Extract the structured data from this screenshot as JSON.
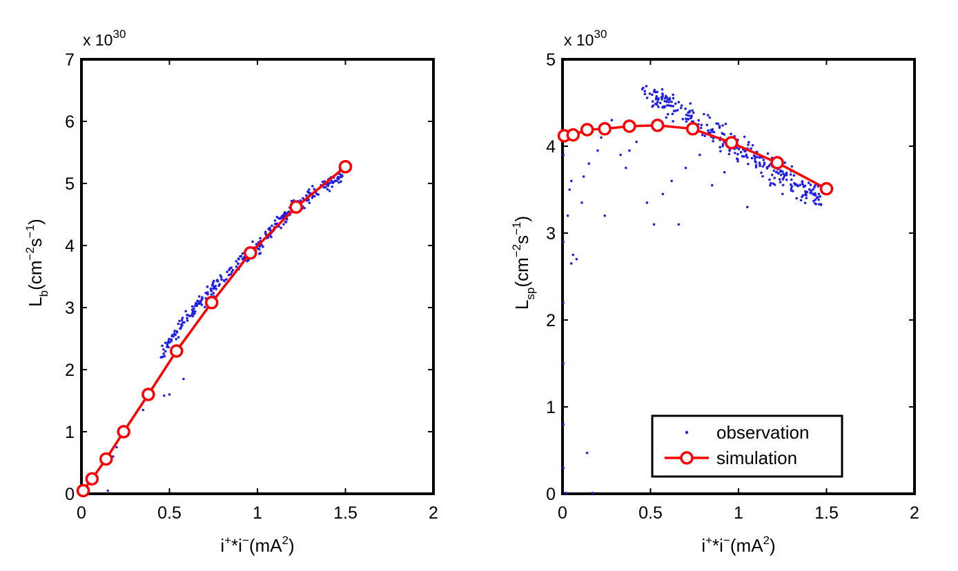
{
  "chart_data": [
    {
      "type": "scatter",
      "xlabel": {
        "base": "i",
        "sup1": "+",
        "mid": "*i",
        "sup2": "−",
        "unit": "(mA",
        "unit_sup": "2",
        "close": ")"
      },
      "ylabel": {
        "base": "L",
        "sub": "b",
        "unit": "(cm",
        "sup1": "−2",
        "s": "s",
        "sup2": "−1",
        "close": ")"
      },
      "exponent": {
        "text": "x 10",
        "power": "30"
      },
      "xlim": [
        0,
        2
      ],
      "ylim": [
        0,
        7
      ],
      "x_ticks": [
        "0",
        "0.5",
        "1",
        "1.5",
        "2"
      ],
      "y_ticks": [
        "0",
        "1",
        "2",
        "3",
        "4",
        "5",
        "6",
        "7"
      ],
      "series": [
        {
          "name": "observation",
          "style": "dots",
          "color": "#1f1fe6",
          "trend": [
            [
              0.45,
              2.25
            ],
            [
              0.6,
              2.85
            ],
            [
              0.75,
              3.3
            ],
            [
              0.9,
              3.75
            ],
            [
              1.0,
              3.98
            ],
            [
              1.1,
              4.3
            ],
            [
              1.2,
              4.6
            ],
            [
              1.3,
              4.82
            ],
            [
              1.4,
              5.0
            ],
            [
              1.5,
              5.15
            ]
          ],
          "n_points": 320,
          "spread": 0.18,
          "outliers": [
            [
              0.5,
              1.6
            ],
            [
              0.47,
              1.58
            ],
            [
              0.58,
              1.85
            ],
            [
              0.2,
              0.75
            ],
            [
              0.18,
              0.6
            ],
            [
              0.15,
              0.05
            ],
            [
              0.03,
              0.08
            ],
            [
              0.25,
              0.95
            ],
            [
              0.35,
              1.35
            ]
          ]
        },
        {
          "name": "simulation",
          "style": "line-circle",
          "color": "#ff0000",
          "x": [
            0.01,
            0.06,
            0.14,
            0.24,
            0.38,
            0.54,
            0.74,
            0.96,
            1.22,
            1.5
          ],
          "y": [
            0.05,
            0.24,
            0.56,
            1.0,
            1.6,
            2.3,
            3.08,
            3.88,
            4.62,
            5.27
          ]
        }
      ]
    },
    {
      "type": "scatter",
      "xlabel": {
        "base": "i",
        "sup1": "+",
        "mid": "*i",
        "sup2": "−",
        "unit": "(mA",
        "unit_sup": "2",
        "close": ")"
      },
      "ylabel": {
        "base": "L",
        "sub": "sp",
        "unit": "(cm",
        "sup1": "−2",
        "s": "s",
        "sup2": "−1",
        "close": ")"
      },
      "exponent": {
        "text": "x 10",
        "power": "30"
      },
      "xlim": [
        0,
        2
      ],
      "ylim": [
        0,
        5
      ],
      "x_ticks": [
        "0",
        "0.5",
        "1",
        "1.5",
        "2"
      ],
      "y_ticks": [
        "0",
        "1",
        "2",
        "3",
        "4",
        "5"
      ],
      "legend": {
        "position": "lower-right",
        "entries": [
          "observation",
          "simulation"
        ]
      },
      "series": [
        {
          "name": "observation",
          "style": "dots",
          "color": "#1f1fe6",
          "trend": [
            [
              0.45,
              4.62
            ],
            [
              0.6,
              4.48
            ],
            [
              0.75,
              4.3
            ],
            [
              0.9,
              4.1
            ],
            [
              1.0,
              3.98
            ],
            [
              1.1,
              3.85
            ],
            [
              1.2,
              3.72
            ],
            [
              1.3,
              3.6
            ],
            [
              1.4,
              3.48
            ],
            [
              1.48,
              3.38
            ]
          ],
          "n_points": 300,
          "spread": 0.22,
          "outliers": [
            [
              0.05,
              3.6
            ],
            [
              0.04,
              3.5
            ],
            [
              0.03,
              3.2
            ],
            [
              0.06,
              2.75
            ],
            [
              0.08,
              2.7
            ],
            [
              0.05,
              2.65
            ],
            [
              0.14,
              0.47
            ],
            [
              0.17,
              0.01
            ],
            [
              0.02,
              0.01
            ],
            [
              0.11,
              3.35
            ],
            [
              0.12,
              3.65
            ],
            [
              0.15,
              3.8
            ],
            [
              0.2,
              3.95
            ],
            [
              0.22,
              4.1
            ],
            [
              0.24,
              3.2
            ],
            [
              0.28,
              4.3
            ],
            [
              0.33,
              3.9
            ],
            [
              0.36,
              3.75
            ],
            [
              0.38,
              3.95
            ],
            [
              0.42,
              4.05
            ],
            [
              0.48,
              3.35
            ],
            [
              0.52,
              3.1
            ],
            [
              0.57,
              3.45
            ],
            [
              0.62,
              3.6
            ],
            [
              0.66,
              3.1
            ],
            [
              0.7,
              3.75
            ],
            [
              0.78,
              3.9
            ],
            [
              0.85,
              3.55
            ],
            [
              0.92,
              3.7
            ],
            [
              1.05,
              3.3
            ],
            [
              1.18,
              3.55
            ],
            [
              1.25,
              3.45
            ],
            [
              1.33,
              3.4
            ],
            [
              0.005,
              0.3
            ],
            [
              0.005,
              0.8
            ],
            [
              0.005,
              1.5
            ],
            [
              0.005,
              2.2
            ],
            [
              0.005,
              2.9
            ],
            [
              0.005,
              3.9
            ]
          ]
        },
        {
          "name": "simulation",
          "style": "line-circle",
          "color": "#ff0000",
          "x": [
            0.01,
            0.06,
            0.14,
            0.24,
            0.38,
            0.54,
            0.74,
            0.96,
            1.22,
            1.5
          ],
          "y": [
            4.12,
            4.13,
            4.19,
            4.2,
            4.23,
            4.24,
            4.2,
            4.04,
            3.81,
            3.51
          ]
        }
      ]
    }
  ]
}
